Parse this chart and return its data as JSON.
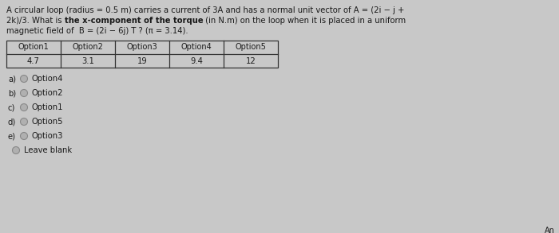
{
  "question_line1": "A circular loop (radius = 0.5 m) carries a current of 3A and has a normal unit vector of A = (2i − j +",
  "question_line2_pre": "2k)/3. What is ",
  "question_line2_bold": "the x-component of the torque",
  "question_line2_post": " (in N.m) on the loop when it is placed in a uniform",
  "question_line3": "magnetic field of  B = (2i − 6j) T ? (π = 3.14).",
  "table_headers": [
    "Option1",
    "Option2",
    "Option3",
    "Option4",
    "Option5"
  ],
  "table_values": [
    "4.7",
    "3.1",
    "19",
    "9.4",
    "12"
  ],
  "choices": [
    {
      "label": "a)",
      "text": "Option4"
    },
    {
      "label": "b)",
      "text": "Option2"
    },
    {
      "label": "c)",
      "text": "Option1"
    },
    {
      "label": "d)",
      "text": "Option5"
    },
    {
      "label": "e)",
      "text": "Option3"
    }
  ],
  "leave_blank": "Leave blank",
  "answer_label": "An",
  "bg_color": "#c8c8c8",
  "text_color": "#1a1a1a",
  "table_border": "#333333",
  "radio_outer": "#888888",
  "radio_inner": "#b0b0b0"
}
